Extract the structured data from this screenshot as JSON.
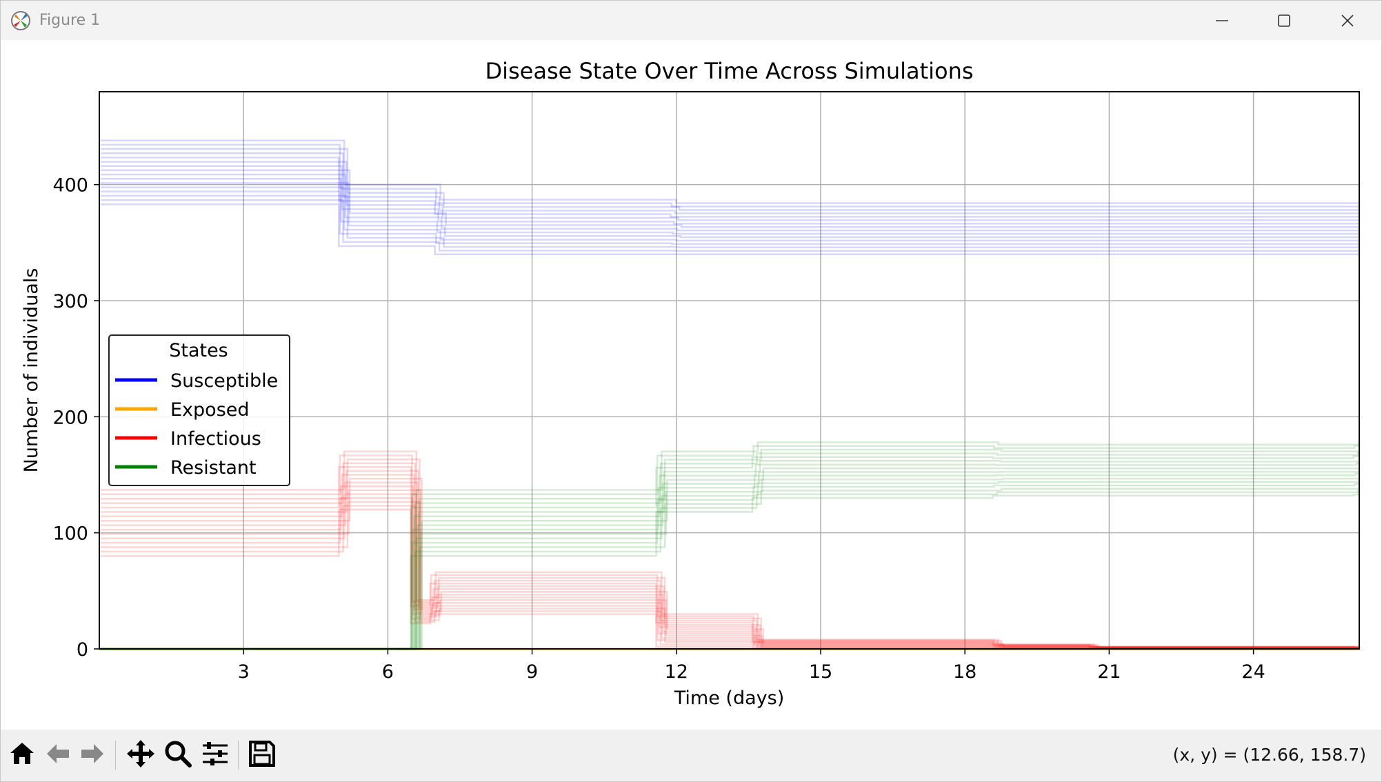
{
  "window": {
    "title": "Figure 1",
    "icons": {
      "app": "matplotlib-logo-icon",
      "minimize": "minimize-icon",
      "maximize": "maximize-icon",
      "close": "close-icon"
    }
  },
  "toolbar": {
    "buttons": [
      {
        "name": "home-button",
        "icon": "home-icon"
      },
      {
        "name": "back-button",
        "icon": "arrow-left-icon"
      },
      {
        "name": "forward-button",
        "icon": "arrow-right-icon"
      },
      {
        "name": "pan-button",
        "icon": "move-arrows-icon"
      },
      {
        "name": "zoom-button",
        "icon": "magnifier-icon"
      },
      {
        "name": "configure-subplots-button",
        "icon": "sliders-icon"
      },
      {
        "name": "save-button",
        "icon": "floppy-disk-icon"
      }
    ],
    "coordinates": "(x, y) = (12.66, 158.7)"
  },
  "chart_data": {
    "type": "line",
    "title": "Disease State Over Time Across Simulations",
    "xlabel": "Time (days)",
    "ylabel": "Number of individuals",
    "xlim": [
      0,
      26.2
    ],
    "ylim": [
      0,
      480
    ],
    "xticks": [
      3,
      6,
      9,
      12,
      15,
      18,
      21,
      24
    ],
    "yticks": [
      0,
      100,
      200,
      300,
      400
    ],
    "grid": true,
    "legend": {
      "title": "States",
      "placement": "center-left"
    },
    "series": [
      {
        "name": "Susceptible",
        "color": "#0000ff",
        "steps": [
          {
            "t": 0,
            "range": [
              383,
              438
            ]
          },
          {
            "t": 0.1,
            "range": [
              383,
              438
            ]
          },
          {
            "t": 5.1,
            "range": [
              347,
              400
            ]
          },
          {
            "t": 7.1,
            "range": [
              340,
              387
            ]
          },
          {
            "t": 12.0,
            "range": [
              340,
              384
            ]
          },
          {
            "t": 13.9,
            "range": [
              340,
              384
            ]
          },
          {
            "t": 26.2,
            "range": [
              340,
              384
            ]
          }
        ]
      },
      {
        "name": "Exposed",
        "color": "#ffa500",
        "steps": [
          {
            "t": 0,
            "range": [
              0,
              0
            ]
          },
          {
            "t": 26.2,
            "range": [
              0,
              0
            ]
          }
        ]
      },
      {
        "name": "Infectious",
        "color": "#ff0000",
        "steps": [
          {
            "t": 0,
            "range": [
              80,
              137
            ]
          },
          {
            "t": 5.1,
            "range": [
              120,
              170
            ]
          },
          {
            "t": 6.6,
            "range": [
              22,
              42
            ]
          },
          {
            "t": 7.0,
            "range": [
              30,
              66
            ]
          },
          {
            "t": 11.7,
            "range": [
              2,
              30
            ]
          },
          {
            "t": 13.7,
            "range": [
              0,
              8
            ]
          },
          {
            "t": 18.7,
            "range": [
              0,
              4
            ]
          },
          {
            "t": 20.7,
            "range": [
              0,
              2
            ]
          },
          {
            "t": 26.2,
            "range": [
              0,
              1
            ]
          }
        ]
      },
      {
        "name": "Resistant",
        "color": "#008000",
        "steps": [
          {
            "t": 0,
            "range": [
              0,
              0
            ]
          },
          {
            "t": 6.6,
            "range": [
              80,
              137
            ]
          },
          {
            "t": 11.7,
            "range": [
              118,
              170
            ]
          },
          {
            "t": 13.7,
            "range": [
              130,
              178
            ]
          },
          {
            "t": 18.7,
            "range": [
              132,
              176
            ]
          },
          {
            "t": 26.2,
            "range": [
              133,
              178
            ]
          }
        ]
      }
    ]
  }
}
